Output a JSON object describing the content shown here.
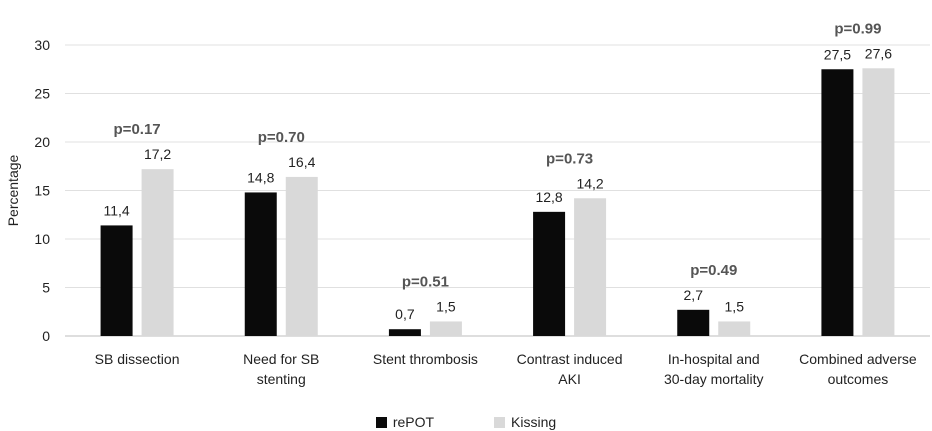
{
  "chart_data": {
    "type": "bar",
    "title": "",
    "ylabel": "Percentage",
    "xlabel": "",
    "ylim": [
      0,
      30
    ],
    "yticks": [
      "0",
      "5",
      "10",
      "15",
      "20",
      "25",
      "30"
    ],
    "grid": true,
    "legend_position": "bottom",
    "categories": [
      [
        "SB dissection"
      ],
      [
        "Need for SB",
        "stenting"
      ],
      [
        "Stent thrombosis"
      ],
      [
        "Contrast induced",
        "AKI"
      ],
      [
        "In-hospital and",
        "30-day mortality"
      ],
      [
        "Combined adverse",
        "outcomes"
      ]
    ],
    "series": [
      {
        "name": "rePOT",
        "color": "#0a0a0a",
        "values": [
          11.4,
          14.8,
          0.7,
          12.8,
          2.7,
          27.5
        ],
        "labels": [
          "11,4",
          "14,8",
          "0,7",
          "12,8",
          "2,7",
          "27,5"
        ]
      },
      {
        "name": "Kissing",
        "color": "#d9d9d9",
        "values": [
          17.2,
          16.4,
          1.5,
          14.2,
          1.5,
          27.6
        ],
        "labels": [
          "17,2",
          "16,4",
          "1,5",
          "14,2",
          "1,5",
          "27,6"
        ]
      }
    ],
    "annotations": [
      "p=0.17",
      "p=0.70",
      "p=0.51",
      "p=0.73",
      "p=0.49",
      "p=0.99"
    ]
  }
}
